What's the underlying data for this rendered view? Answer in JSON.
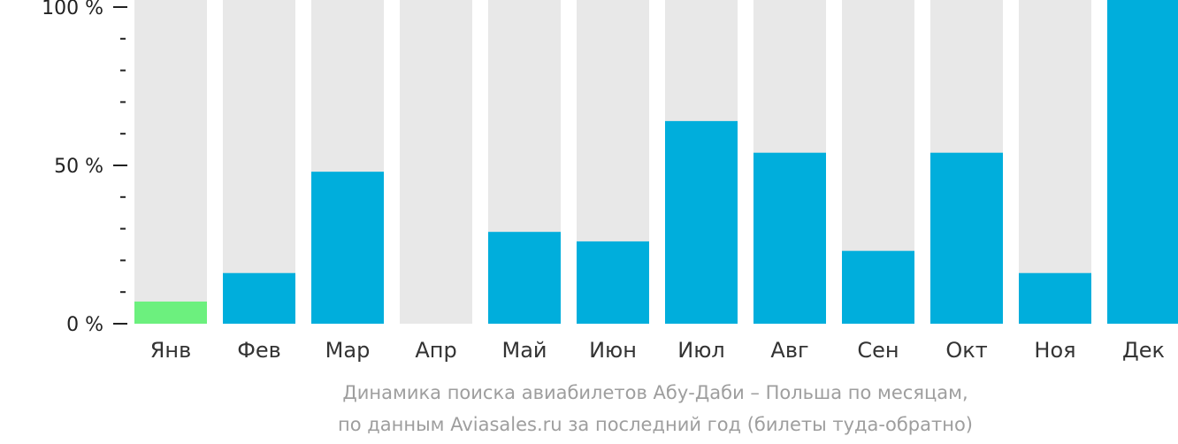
{
  "chart_data": {
    "type": "bar",
    "categories": [
      "Янв",
      "Фев",
      "Мар",
      "Апр",
      "Май",
      "Июн",
      "Июл",
      "Авг",
      "Сен",
      "Окт",
      "Ноя",
      "Дек"
    ],
    "values": [
      7,
      16,
      48,
      0,
      29,
      26,
      64,
      54,
      23,
      54,
      16,
      100
    ],
    "ylim": [
      0,
      100
    ],
    "yticks": [
      {
        "value": 0,
        "label": "0 %"
      },
      {
        "value": 50,
        "label": "50 %"
      },
      {
        "value": 100,
        "label": "100 %"
      }
    ],
    "minor_ticks_per_major": 5,
    "colors": {
      "bar": "#00aedc",
      "highlight": "#6cf07e",
      "background_bar": "#e8e8e8",
      "axis": "#222222"
    },
    "highlight_index": 0
  },
  "caption": {
    "line1": "Динамика поиска авиабилетов Абу-Даби – Польша по месяцам,",
    "line2": "по данным Aviasales.ru за последний год (билеты туда-обратно)"
  }
}
